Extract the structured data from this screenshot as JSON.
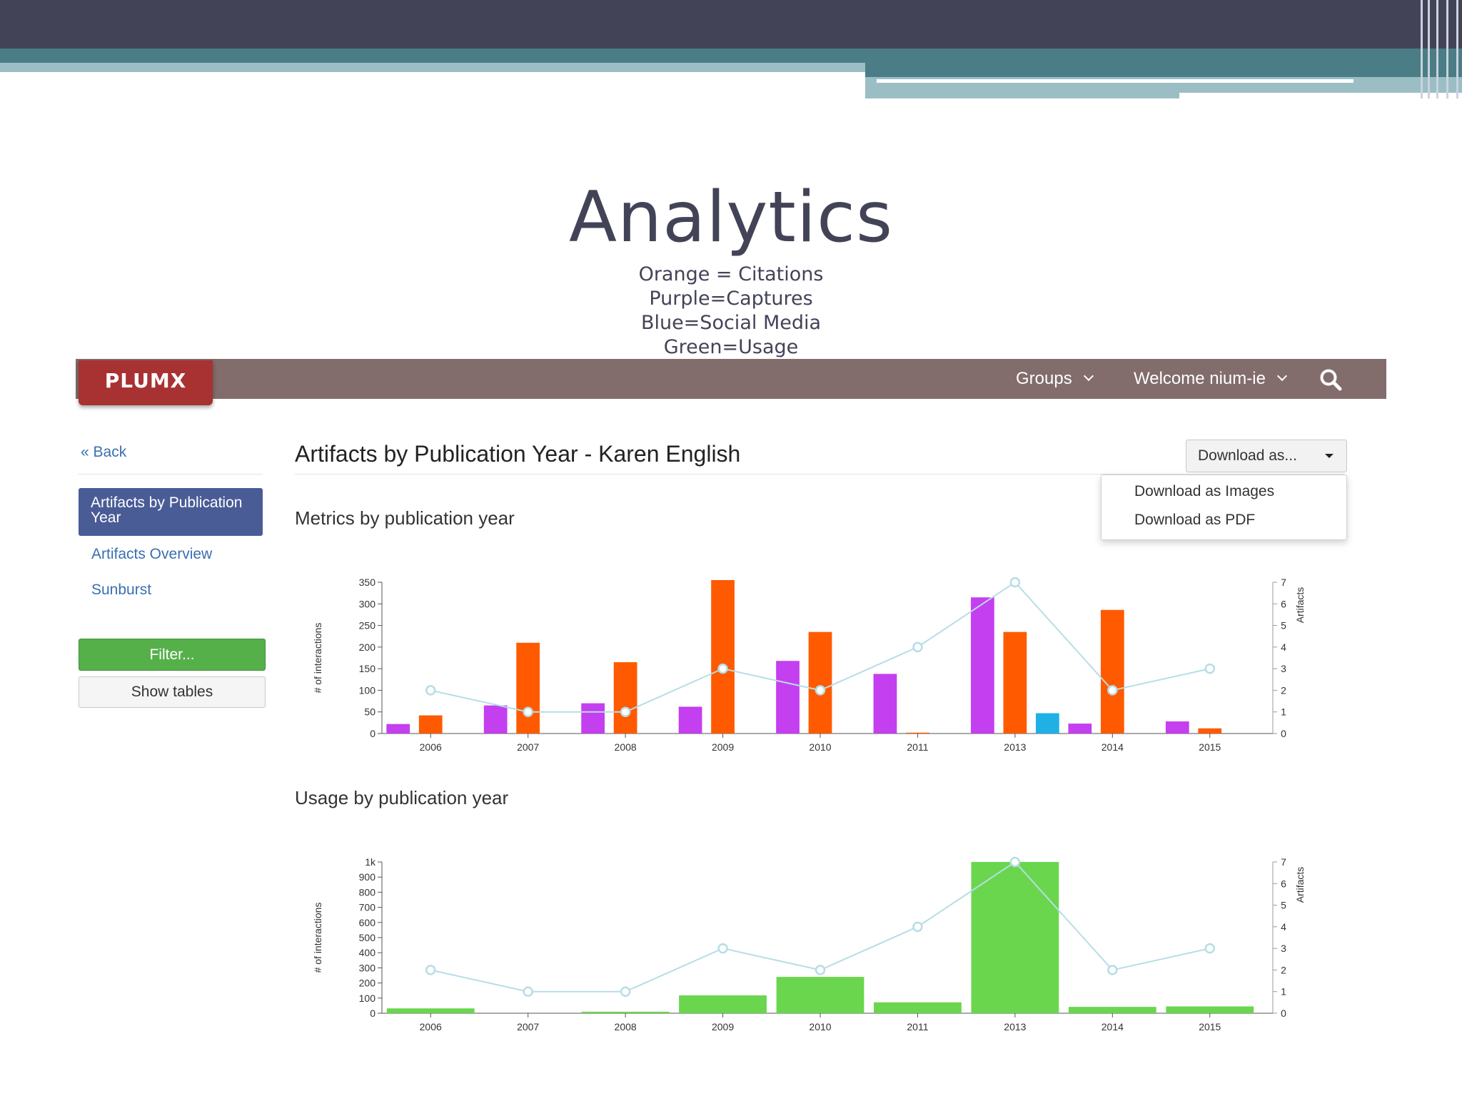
{
  "slide": {
    "title": "Analytics",
    "legend_lines": [
      "Orange = Citations",
      "Purple=Captures",
      "Blue=Social Media",
      "Green=Usage"
    ]
  },
  "navbar": {
    "logo": "PLUMX",
    "groups_label": "Groups",
    "welcome_label": "Welcome nium-ie",
    "search_icon": "search-icon"
  },
  "sidebar": {
    "back_label": "« Back",
    "active_item": "Artifacts by Publication Year",
    "items": [
      "Artifacts Overview",
      "Sunburst"
    ],
    "filter_label": "Filter...",
    "show_tables_label": "Show tables"
  },
  "main": {
    "title": "Artifacts by Publication Year - Karen English",
    "download_label": "Download as...",
    "download_options": [
      "Download as Images",
      "Download as PDF"
    ],
    "metrics_title": "Metrics by publication year",
    "usage_title": "Usage by publication year"
  },
  "colors": {
    "citations": "#ff5a00",
    "captures": "#c43ff0",
    "social": "#1fb1e6",
    "usage": "#6ad64e",
    "artifacts_line": "#b7dde6",
    "navbar": "#826c6c",
    "logo": "#a83232",
    "active_nav": "#4a5c96",
    "filter": "#55b04a"
  },
  "chart_data": [
    {
      "type": "bar",
      "title": "Metrics by publication year",
      "categories": [
        "2006",
        "2007",
        "2008",
        "2009",
        "2010",
        "2011",
        "2013",
        "2014",
        "2015"
      ],
      "ylabel": "# of interactions",
      "ylabel_right": "Artifacts",
      "ylim": [
        0,
        350
      ],
      "y_ticks": [
        "0",
        "50",
        "100",
        "150",
        "200",
        "250",
        "300",
        "350"
      ],
      "y2lim": [
        0,
        7
      ],
      "y2_ticks": [
        "0",
        "1",
        "2",
        "3",
        "4",
        "5",
        "6",
        "7"
      ],
      "series": [
        {
          "name": "Captures",
          "color": "#c43ff0",
          "values": [
            22,
            65,
            70,
            62,
            168,
            138,
            315,
            23,
            28
          ]
        },
        {
          "name": "Citations",
          "color": "#ff5a00",
          "values": [
            42,
            210,
            165,
            355,
            235,
            2,
            235,
            286,
            12
          ]
        },
        {
          "name": "Social Media",
          "color": "#1fb1e6",
          "values": [
            0,
            0,
            0,
            0,
            0,
            0,
            47,
            0,
            0
          ]
        },
        {
          "name": "Artifacts",
          "type": "line",
          "color": "#b7dde6",
          "values": [
            2,
            1,
            1,
            3,
            2,
            4,
            7,
            2,
            3
          ]
        }
      ]
    },
    {
      "type": "bar",
      "title": "Usage by publication year",
      "categories": [
        "2006",
        "2007",
        "2008",
        "2009",
        "2010",
        "2011",
        "2013",
        "2014",
        "2015"
      ],
      "ylabel": "# of interactions",
      "ylabel_right": "Artifacts",
      "ylim": [
        0,
        1000
      ],
      "y_ticks": [
        "0",
        "100",
        "200",
        "300",
        "400",
        "500",
        "600",
        "700",
        "800",
        "900",
        "1k"
      ],
      "y2lim": [
        0,
        7
      ],
      "y2_ticks": [
        "0",
        "1",
        "2",
        "3",
        "4",
        "5",
        "6",
        "7"
      ],
      "series": [
        {
          "name": "Usage",
          "color": "#6ad64e",
          "values": [
            32,
            0,
            10,
            118,
            240,
            72,
            1000,
            42,
            45
          ]
        },
        {
          "name": "Artifacts",
          "type": "line",
          "color": "#b7dde6",
          "values": [
            2,
            1,
            1,
            3,
            2,
            4,
            7,
            2,
            3
          ]
        }
      ]
    }
  ]
}
